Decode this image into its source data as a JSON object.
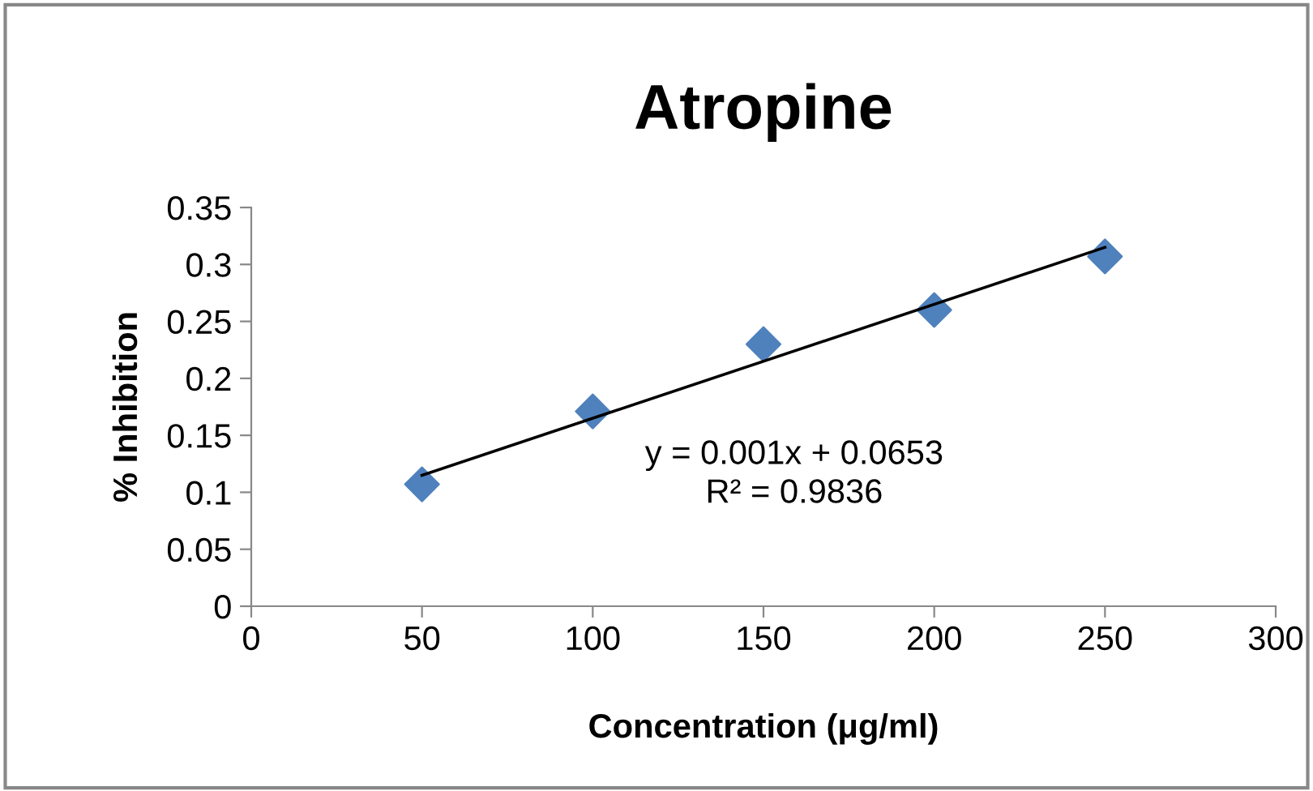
{
  "chart_data": {
    "type": "scatter",
    "title": "Atropine",
    "xlabel": "Concentration (μg/ml)",
    "ylabel": "% Inhibition",
    "series": [
      {
        "color": "#4f81bd",
        "marker": "diamond",
        "x": [
          50,
          100,
          150,
          200,
          250
        ],
        "values": [
          0.107,
          0.171,
          0.23,
          0.26,
          0.307
        ]
      },
      {
        "type": "line",
        "color": "#000000",
        "marker": "none",
        "x": [
          50,
          250
        ],
        "values": [
          0.115,
          0.315
        ]
      }
    ],
    "annotations": [
      "y = 0.001x + 0.0653\nR² = 0.9836"
    ],
    "xlim": [
      0,
      300
    ],
    "xticks": [
      0,
      50,
      100,
      150,
      200,
      250,
      300
    ],
    "ylim": [
      0,
      0.35
    ],
    "yticks": [
      0,
      0.05,
      0.1,
      0.15,
      0.2,
      0.25,
      0.3,
      0.35
    ],
    "grid": false,
    "legend": false
  }
}
